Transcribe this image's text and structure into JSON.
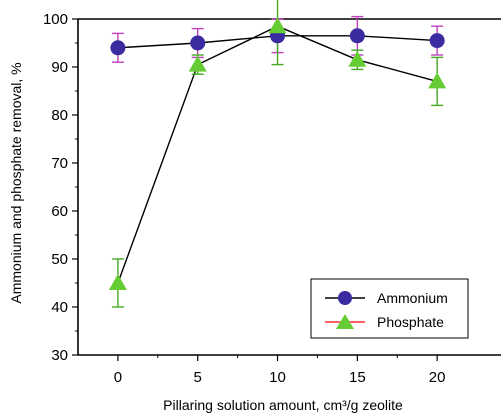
{
  "chart_data": {
    "type": "line",
    "x": [
      0,
      5,
      10,
      15,
      20
    ],
    "series": [
      {
        "name": "Ammonium",
        "values": [
          94,
          95,
          96.5,
          96.5,
          95.5
        ],
        "err": [
          3,
          3,
          3.5,
          4,
          3
        ],
        "marker": "circle",
        "color": "#3a2ba0",
        "error_color": "#c040c0"
      },
      {
        "name": "Phosphate",
        "values": [
          45,
          90.5,
          98.5,
          91.5,
          87
        ],
        "err": [
          5,
          2,
          8,
          2,
          5
        ],
        "marker": "triangle",
        "color": "#66cc33",
        "error_color": "#44aa22",
        "legend_line_color": "#ff3030"
      }
    ],
    "x_ticks": [
      "0",
      "5",
      "10",
      "15",
      "20"
    ],
    "y_ticks": [
      "30",
      "40",
      "50",
      "60",
      "70",
      "80",
      "90",
      "100"
    ],
    "xlabel": "Pillaring solution amount, cm³/g zeolite",
    "ylabel": "Ammonium and phosphate removal, %",
    "xlim": [
      -2.5,
      24
    ],
    "ylim": [
      30,
      100
    ],
    "legend_position": "bottom-right",
    "grid": false
  }
}
